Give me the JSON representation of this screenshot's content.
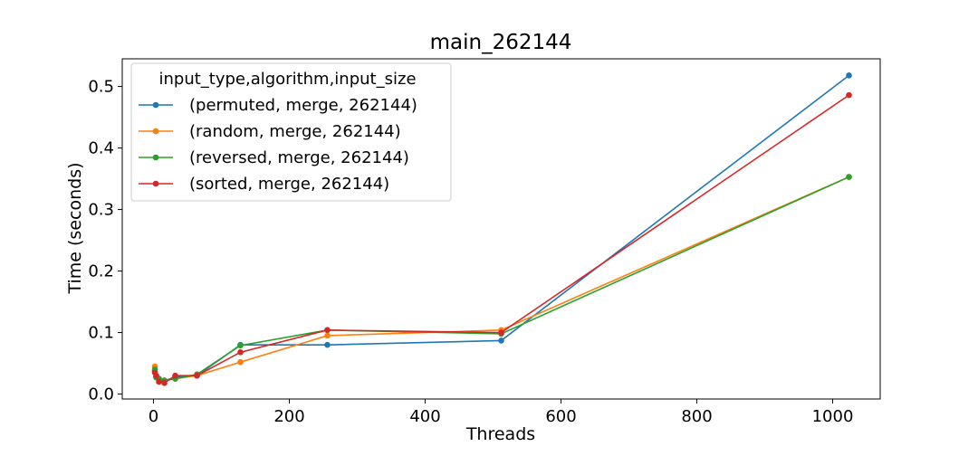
{
  "chart_data": {
    "type": "line",
    "title": "main_262144",
    "xlabel": "Threads",
    "ylabel": "Time (seconds)",
    "xlim": [
      -46,
      1070
    ],
    "ylim": [
      -0.008,
      0.545
    ],
    "xticks": [
      0,
      200,
      400,
      600,
      800,
      1000
    ],
    "xtick_labels": [
      "0",
      "200",
      "400",
      "600",
      "800",
      "1000"
    ],
    "yticks": [
      0.0,
      0.1,
      0.2,
      0.3,
      0.4,
      0.5
    ],
    "ytick_labels": [
      "0.0",
      "0.1",
      "0.2",
      "0.3",
      "0.4",
      "0.5"
    ],
    "grid": false,
    "legend": {
      "title": "input_type,algorithm,input_size",
      "placement": "top-left"
    },
    "x": [
      2,
      4,
      8,
      16,
      32,
      64,
      128,
      256,
      512,
      1024
    ],
    "series": [
      {
        "name": "(permuted, merge, 262144)",
        "color": "#1f77b4",
        "values": [
          0.037,
          0.028,
          0.024,
          0.022,
          0.027,
          0.03,
          0.08,
          0.08,
          0.087,
          0.518
        ]
      },
      {
        "name": "(random, merge, 262144)",
        "color": "#ff7f0e",
        "values": [
          0.045,
          0.03,
          0.025,
          0.022,
          0.025,
          0.03,
          0.052,
          0.095,
          0.104,
          0.353
        ]
      },
      {
        "name": "(reversed, merge, 262144)",
        "color": "#2ca02c",
        "values": [
          0.04,
          0.027,
          0.025,
          0.022,
          0.025,
          0.032,
          0.079,
          0.104,
          0.098,
          0.353
        ]
      },
      {
        "name": "(sorted, merge, 262144)",
        "color": "#d62728",
        "values": [
          0.035,
          0.03,
          0.02,
          0.018,
          0.03,
          0.03,
          0.068,
          0.104,
          0.1,
          0.486
        ]
      }
    ]
  }
}
